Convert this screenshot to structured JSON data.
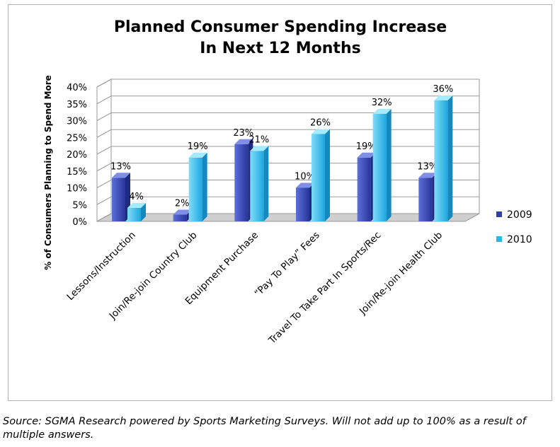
{
  "chart_data": {
    "type": "bar",
    "title": [
      "Planned Consumer Spending Increase",
      "In Next 12 Months"
    ],
    "ylabel": "% of Consumers Planning to Spend More",
    "xlabel": "",
    "ylim": [
      0,
      40
    ],
    "yticks": [
      "0%",
      "5%",
      "10%",
      "15%",
      "20%",
      "25%",
      "30%",
      "35%",
      "40%"
    ],
    "categories": [
      "Lessons/Instruction",
      "Join/Re-join Country Club",
      "Equipment Purchase",
      "“Pay To Play” Fees",
      "Travel To Take Part In Sports/Rec",
      "Join/Re-join Health Club"
    ],
    "series": [
      {
        "name": "2009",
        "values": [
          13,
          2,
          23,
          10,
          19,
          13
        ],
        "labels": [
          "13%",
          "2%",
          "23%",
          "10%",
          "19%",
          "13%"
        ],
        "color": "#2e3fa8"
      },
      {
        "name": "2010",
        "values": [
          4,
          19,
          21,
          26,
          32,
          36
        ],
        "labels": [
          "4%",
          "19%",
          "21%",
          "26%",
          "32%",
          "36%"
        ],
        "color": "#29b6e8"
      }
    ],
    "grid": true,
    "legend_position": "right"
  },
  "source_note": "Source: SGMA Research powered by Sports Marketing Surveys.  Will not add up to 100% as a result of multiple answers."
}
